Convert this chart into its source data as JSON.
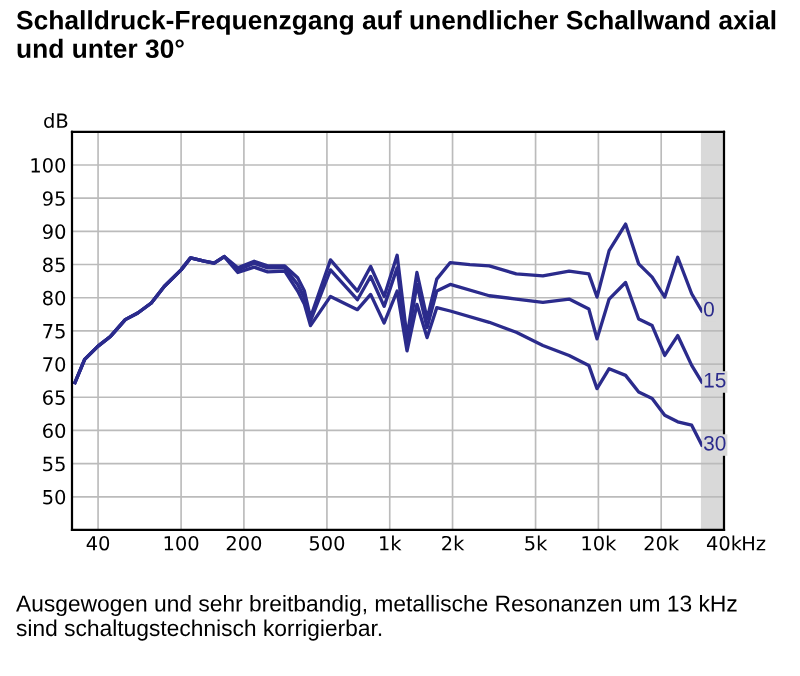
{
  "chart_data": {
    "type": "line",
    "title": "Schalldruck-Frequenzgang auf unendlicher Schallwand axial\nund unter 30°",
    "ylabel": "dB",
    "annotations": [
      "Ausgewogen und sehr breitbandig, metallische Resonanzen um 13 kHz\nsind schaltugstechnisch korrigierbar."
    ],
    "log": "x",
    "xlim": [
      30,
      40000
    ],
    "ylim": [
      45,
      105
    ],
    "xticks": [
      40,
      100,
      200,
      500,
      {
        "value": 1000,
        "label": "1k"
      },
      {
        "value": 2000,
        "label": "2k"
      },
      {
        "value": 5000,
        "label": "5k"
      },
      {
        "value": 10000,
        "label": "10k"
      },
      {
        "value": 20000,
        "label": "20k"
      },
      {
        "value": 40000,
        "label": "40k"
      }
    ],
    "xlabel": "Hz",
    "yticks": [
      50,
      55,
      60,
      65,
      70,
      75,
      80,
      85,
      90,
      95,
      100
    ],
    "grid": true,
    "legend": false,
    "bands": [
      {
        "axis": "x",
        "from": 31000,
        "to": 40000,
        "color": "#d9d9d9"
      }
    ],
    "series": [
      {
        "name": "0",
        "color": "#2b2b8c",
        "x": [
          31,
          34.5,
          40,
          46,
          54,
          62,
          72,
          83,
          100,
          111,
          129,
          144,
          161,
          187,
          224,
          260,
          314,
          362,
          390,
          417,
          520,
          700,
          810,
          940,
          1085,
          1210,
          1350,
          1510,
          1680,
          1950,
          2420,
          3000,
          4040,
          5420,
          7240,
          9000,
          9850,
          11260,
          13500,
          15600,
          18100,
          20800,
          24000,
          28000,
          31300
        ],
        "values": [
          67.2,
          70.7,
          72.7,
          74.2,
          76.7,
          77.7,
          79.2,
          81.7,
          84.2,
          86,
          85.5,
          85.2,
          86.2,
          84.5,
          85.5,
          84.8,
          84.8,
          83,
          81,
          77,
          85.7,
          81,
          84.7,
          80.2,
          86.4,
          74,
          83.8,
          76.8,
          82.8,
          85.3,
          85,
          84.8,
          83.6,
          83.3,
          84,
          83.6,
          80.1,
          87.1,
          91.1,
          85.1,
          83.1,
          80.1,
          86.1,
          80.6,
          78
        ]
      },
      {
        "name": "15",
        "color": "#2b2b8c",
        "x": [
          31,
          34.5,
          40,
          46,
          54,
          62,
          72,
          83,
          100,
          111,
          129,
          144,
          161,
          187,
          224,
          260,
          314,
          362,
          390,
          417,
          520,
          700,
          810,
          940,
          1085,
          1210,
          1350,
          1510,
          1680,
          1950,
          3000,
          4040,
          5420,
          7240,
          9000,
          9850,
          11260,
          13500,
          15600,
          18100,
          20800,
          24000,
          28000,
          31300
        ],
        "values": [
          67.2,
          70.7,
          72.7,
          74.2,
          76.7,
          77.7,
          79.2,
          81.7,
          84.2,
          86,
          85.5,
          85.2,
          86.2,
          84.2,
          85.2,
          84.5,
          84.5,
          82,
          80,
          76.5,
          84.2,
          79.7,
          83.2,
          78.7,
          84.5,
          73,
          82,
          75.5,
          81,
          82,
          80.3,
          79.8,
          79.3,
          79.8,
          78.3,
          73.8,
          79.8,
          82.3,
          76.8,
          75.8,
          71.3,
          74.3,
          69.8,
          67.3
        ]
      },
      {
        "name": "30",
        "color": "#2b2b8c",
        "x": [
          31,
          34.5,
          40,
          46,
          54,
          62,
          72,
          83,
          100,
          111,
          129,
          144,
          161,
          187,
          224,
          260,
          314,
          362,
          390,
          417,
          520,
          700,
          810,
          940,
          1085,
          1210,
          1350,
          1510,
          1680,
          1950,
          3000,
          4040,
          5420,
          7240,
          9000,
          9850,
          11260,
          13500,
          15600,
          18100,
          20800,
          24000,
          28000,
          31300
        ],
        "values": [
          67.2,
          70.7,
          72.7,
          74.2,
          76.7,
          77.7,
          79.2,
          81.7,
          84.2,
          86,
          85.5,
          85.2,
          86.2,
          83.8,
          84.6,
          83.9,
          84,
          81,
          79,
          75.8,
          80.2,
          78.2,
          80.5,
          76.2,
          81,
          72,
          79,
          74,
          78.5,
          78,
          76.3,
          74.8,
          72.8,
          71.3,
          69.8,
          66.3,
          69.3,
          68.3,
          65.8,
          64.8,
          62.3,
          61.3,
          60.8,
          57.8
        ]
      }
    ]
  }
}
